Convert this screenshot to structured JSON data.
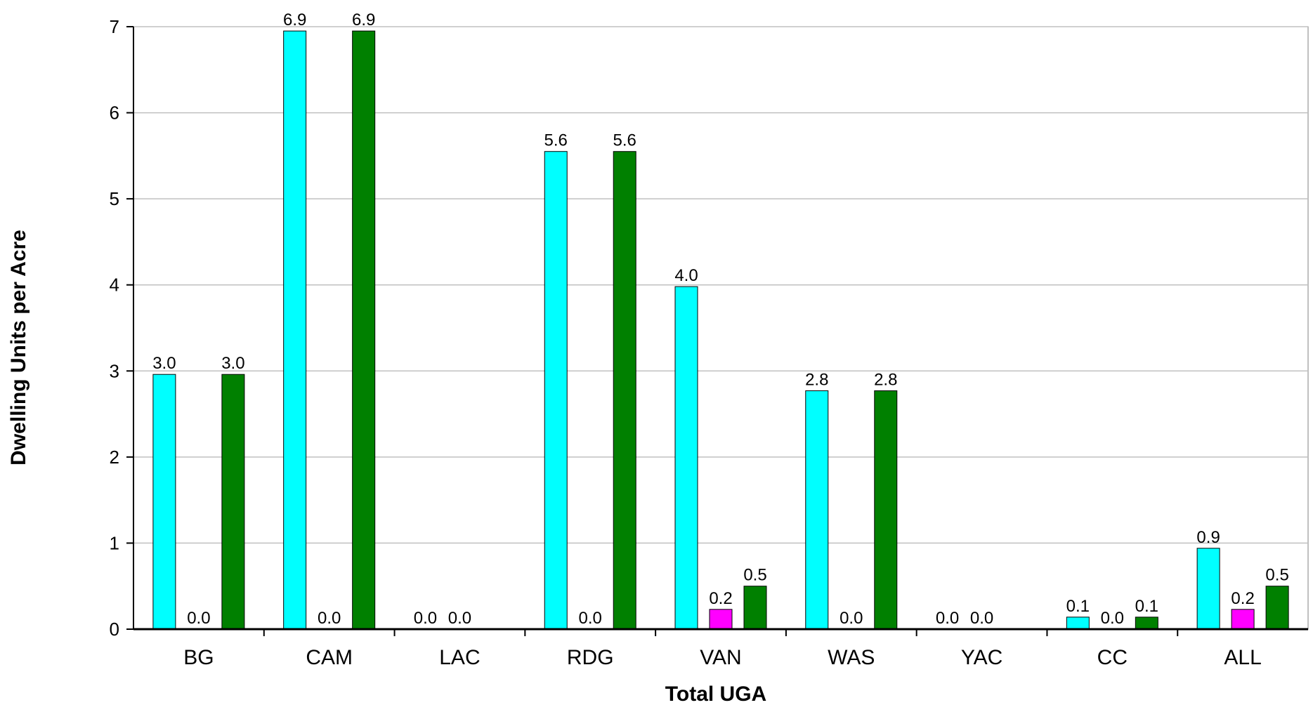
{
  "chart_data": {
    "type": "bar",
    "title": "",
    "xlabel": "Total UGA",
    "ylabel": "Dwelling Units per Acre",
    "ylim": [
      0,
      7
    ],
    "yticks": [
      0,
      1,
      2,
      3,
      4,
      5,
      6,
      7
    ],
    "grid": true,
    "legend": "none",
    "categories": [
      "BG",
      "CAM",
      "LAC",
      "RDG",
      "VAN",
      "WAS",
      "YAC",
      "CC",
      "ALL"
    ],
    "series": [
      {
        "color": "#00FFFF",
        "values": [
          3.0,
          6.9,
          0.0,
          5.6,
          4.0,
          2.8,
          0.0,
          0.1,
          0.9
        ],
        "labels": [
          "3.0",
          "6.9",
          "0.0",
          "5.6",
          "4.0",
          "2.8",
          "0.0",
          "0.1",
          "0.9"
        ]
      },
      {
        "color": "#FF00FF",
        "values": [
          0.0,
          0.0,
          0.0,
          0.0,
          0.2,
          0.0,
          0.0,
          0.0,
          0.2
        ],
        "labels": [
          "0.0",
          "0.0",
          "0.0",
          "0.0",
          "0.2",
          "0.0",
          "0.0",
          "0.0",
          "0.2"
        ]
      },
      {
        "color": "#008000",
        "values": [
          3.0,
          6.9,
          0.0,
          5.6,
          0.5,
          2.8,
          0.0,
          0.1,
          0.5
        ],
        "labels": [
          "3.0",
          "6.9",
          "",
          "5.6",
          "0.5",
          "2.8",
          "",
          "0.1",
          "0.5"
        ]
      }
    ],
    "bar_heights": [
      [
        2.96,
        6.95,
        0.0,
        5.55,
        3.98,
        2.77,
        0.0,
        0.14,
        0.94
      ],
      [
        0.0,
        0.0,
        0.0,
        0.0,
        0.23,
        0.0,
        0.0,
        0.0,
        0.23
      ],
      [
        2.96,
        6.95,
        0.0,
        5.55,
        0.5,
        2.77,
        0.0,
        0.14,
        0.5
      ]
    ]
  }
}
